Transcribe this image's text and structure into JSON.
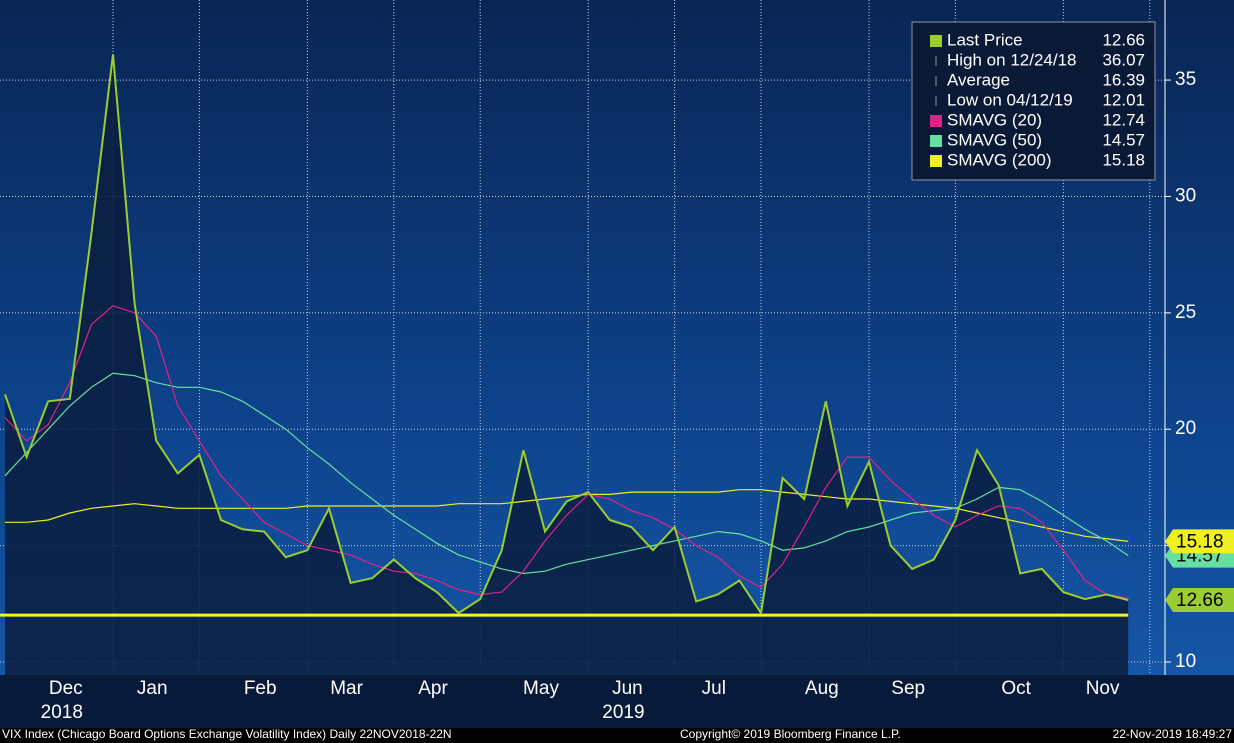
{
  "chart_data": {
    "type": "line",
    "categories": [
      null,
      null,
      null,
      "Dec",
      null,
      null,
      null,
      "Jan",
      null,
      null,
      null,
      null,
      "Feb",
      null,
      null,
      null,
      "Mar",
      null,
      null,
      null,
      "Apr",
      null,
      null,
      null,
      null,
      "May",
      null,
      null,
      null,
      "Jun",
      null,
      null,
      null,
      "Jul",
      null,
      null,
      null,
      null,
      "Aug",
      null,
      null,
      null,
      "Sep",
      null,
      null,
      null,
      null,
      "Oct",
      null,
      null,
      null,
      "Nov",
      null
    ],
    "years": [
      {
        "category": 3,
        "label": "2018"
      },
      {
        "category": 29,
        "label": "2019"
      }
    ],
    "series": [
      {
        "name": "Last Price",
        "color": "#9acd32",
        "area": true,
        "values": [
          21.5,
          18.8,
          21.2,
          21.3,
          28.4,
          36.1,
          25.4,
          19.5,
          18.1,
          18.9,
          16.1,
          15.7,
          15.6,
          14.5,
          14.8,
          16.6,
          13.4,
          13.6,
          14.4,
          13.6,
          13.0,
          12.1,
          12.7,
          14.8,
          19.1,
          15.6,
          16.9,
          17.3,
          16.1,
          15.8,
          14.8,
          15.8,
          12.6,
          12.9,
          13.5,
          12.1,
          17.9,
          17.0,
          21.2,
          16.7,
          18.6,
          15.0,
          14.0,
          14.4,
          16.1,
          19.1,
          17.6,
          13.8,
          14.0,
          13.0,
          12.7,
          12.9,
          12.66
        ]
      },
      {
        "name": "SMAVG (20)",
        "color": "#e0218a",
        "values": [
          20.5,
          19.5,
          20.2,
          22,
          24.5,
          25.3,
          25,
          24,
          21,
          19.5,
          18,
          17,
          16,
          15.5,
          15,
          14.8,
          14.6,
          14.2,
          13.9,
          13.8,
          13.5,
          13.1,
          12.9,
          13,
          13.9,
          15.2,
          16.3,
          17.2,
          17,
          16.5,
          16.2,
          15.7,
          15,
          14.5,
          13.7,
          13.2,
          14.2,
          15.8,
          17.5,
          18.8,
          18.8,
          17.8,
          17.0,
          16.3,
          15.8,
          16.3,
          16.7,
          16.6,
          16,
          14.8,
          13.5,
          12.9,
          12.74
        ]
      },
      {
        "name": "SMAVG (50)",
        "color": "#66e0a0",
        "tag": true,
        "values": [
          18,
          19,
          20,
          21,
          21.8,
          22.4,
          22.3,
          22,
          21.8,
          21.8,
          21.6,
          21.2,
          20.6,
          20,
          19.2,
          18.5,
          17.7,
          17,
          16.3,
          15.7,
          15.1,
          14.6,
          14.3,
          14.0,
          13.8,
          13.9,
          14.2,
          14.4,
          14.6,
          14.8,
          15.0,
          15.2,
          15.4,
          15.6,
          15.5,
          15.2,
          14.8,
          14.9,
          15.2,
          15.6,
          15.8,
          16.1,
          16.4,
          16.5,
          16.6,
          17.0,
          17.5,
          17.4,
          16.9,
          16.3,
          15.7,
          15.2,
          14.57
        ]
      },
      {
        "name": "SMAVG (200)",
        "color": "#f0f020",
        "tag": true,
        "values": [
          16.0,
          16.0,
          16.1,
          16.4,
          16.6,
          16.7,
          16.8,
          16.7,
          16.6,
          16.6,
          16.6,
          16.6,
          16.6,
          16.6,
          16.7,
          16.7,
          16.7,
          16.7,
          16.7,
          16.7,
          16.7,
          16.8,
          16.8,
          16.8,
          16.9,
          17.0,
          17.1,
          17.2,
          17.2,
          17.3,
          17.3,
          17.3,
          17.3,
          17.3,
          17.4,
          17.4,
          17.3,
          17.2,
          17.1,
          17.0,
          17.0,
          16.9,
          16.8,
          16.7,
          16.6,
          16.4,
          16.2,
          16.0,
          15.8,
          15.6,
          15.4,
          15.3,
          15.18
        ]
      }
    ],
    "stats": [
      {
        "label": "High on 12/24/18",
        "value": 36.07
      },
      {
        "label": "Average",
        "value": 16.39
      },
      {
        "label": "Low on 04/12/19",
        "value": 12.01,
        "line": "#f5f520"
      }
    ],
    "ylim": [
      9.44,
      38.44
    ],
    "yticks": [
      10,
      15,
      20,
      25,
      30,
      35
    ],
    "grid": true,
    "legend": "top-right",
    "footer": {
      "left": "VIX Index (Chicago Board Options Exchange Volatility Index)  Daily 22NOV2018-22N",
      "center": "Copyright© 2019 Bloomberg Finance L.P.",
      "right": "22-Nov-2019 18:49:27"
    }
  }
}
